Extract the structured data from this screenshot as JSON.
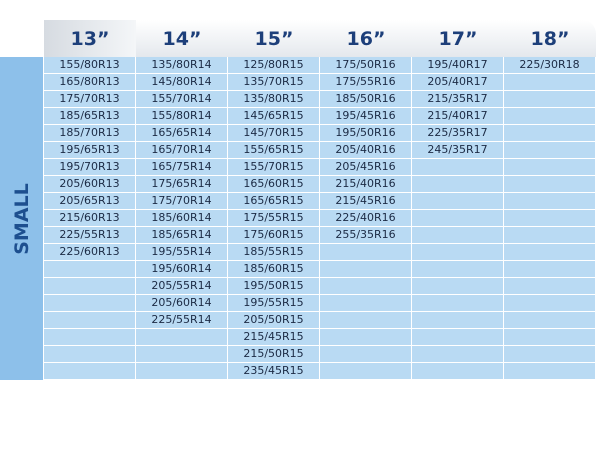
{
  "table": {
    "row_label": "SMALL",
    "columns": [
      {
        "header": "13”",
        "sizes": [
          "155/80R13",
          "165/80R13",
          "175/70R13",
          "185/65R13",
          "185/70R13",
          "195/65R13",
          "195/70R13",
          "205/60R13",
          "205/65R13",
          "215/60R13",
          "225/55R13",
          "225/60R13"
        ]
      },
      {
        "header": "14”",
        "sizes": [
          "135/80R14",
          "145/80R14",
          "155/70R14",
          "155/80R14",
          "165/65R14",
          "165/70R14",
          "165/75R14",
          "175/65R14",
          "175/70R14",
          "185/60R14",
          "185/65R14",
          "195/55R14",
          "195/60R14",
          "205/55R14",
          "205/60R14",
          "225/55R14"
        ]
      },
      {
        "header": "15”",
        "sizes": [
          "125/80R15",
          "135/70R15",
          "135/80R15",
          "145/65R15",
          "145/70R15",
          "155/65R15",
          "155/70R15",
          "165/60R15",
          "165/65R15",
          "175/55R15",
          "175/60R15",
          "185/55R15",
          "185/60R15",
          "195/50R15",
          "195/55R15",
          "205/50R15",
          "215/45R15",
          "215/50R15",
          "235/45R15"
        ]
      },
      {
        "header": "16”",
        "sizes": [
          "175/50R16",
          "175/55R16",
          "185/50R16",
          "195/45R16",
          "195/50R16",
          "205/40R16",
          "205/45R16",
          "215/40R16",
          "215/45R16",
          "225/40R16",
          "255/35R16"
        ]
      },
      {
        "header": "17”",
        "sizes": [
          "195/40R17",
          "205/40R17",
          "215/35R17",
          "215/40R17",
          "225/35R17",
          "245/35R17"
        ]
      },
      {
        "header": "18”",
        "sizes": [
          "225/30R18"
        ]
      }
    ]
  }
}
